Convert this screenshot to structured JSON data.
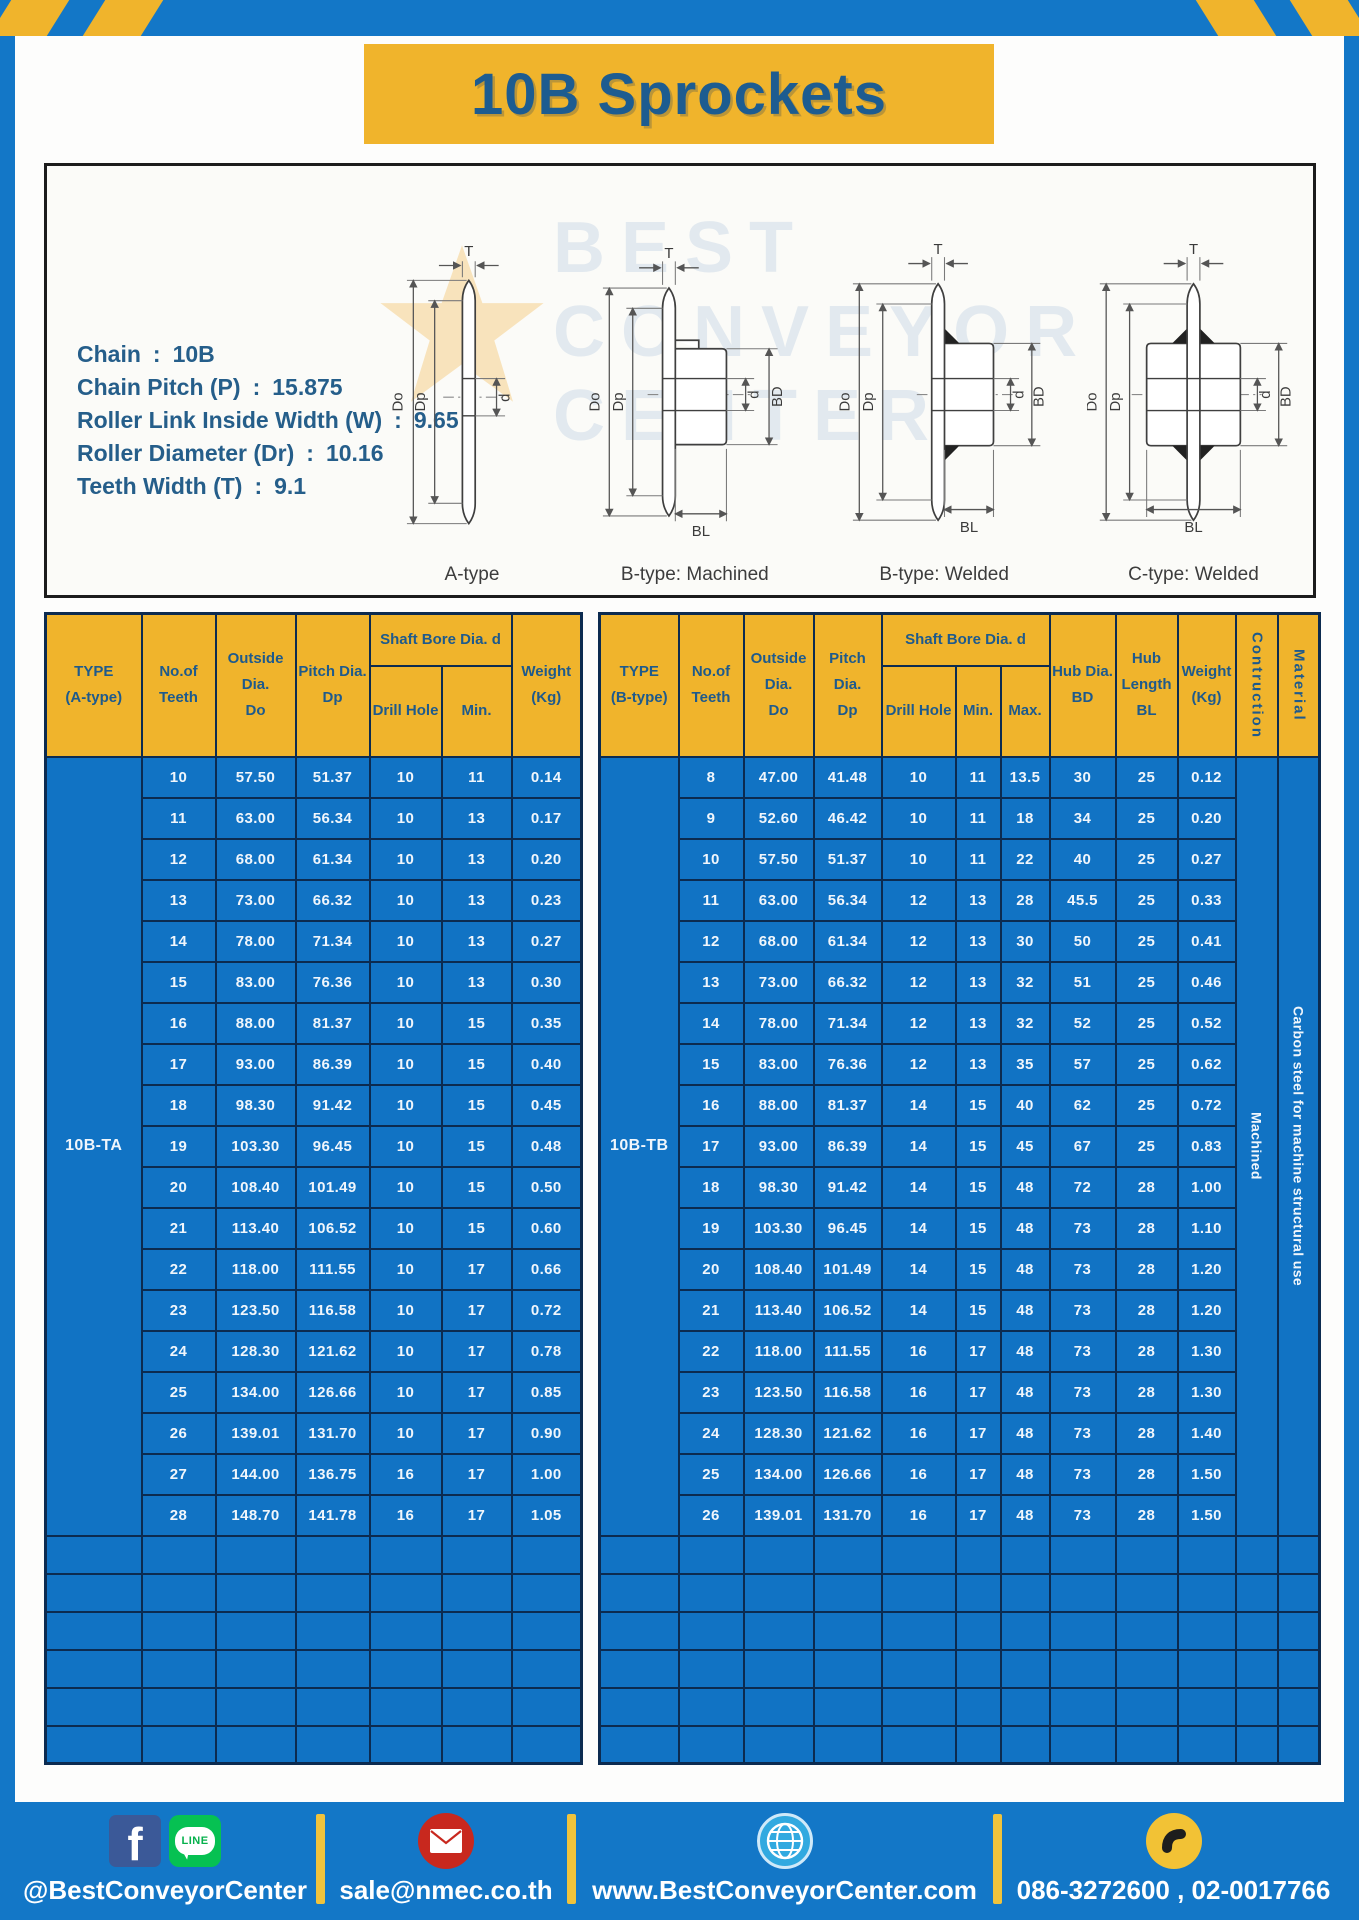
{
  "header": {
    "title": "10B Sprockets"
  },
  "specs": {
    "separator": ":",
    "items": [
      {
        "label": "Chain",
        "value": "10B"
      },
      {
        "label": "Chain Pitch (P)",
        "value": "15.875"
      },
      {
        "label": "Roller Link Inside Width (W)",
        "value": "9.65"
      },
      {
        "label": "Roller Diameter (Dr)",
        "value": "10.16"
      },
      {
        "label": "Teeth Width (T)",
        "value": "9.1"
      }
    ]
  },
  "diagram": {
    "captions": [
      "A-type",
      "B-type: Machined",
      "B-type: Welded",
      "C-type: Welded"
    ],
    "dims": {
      "t": "T",
      "outside": "Do",
      "pitch": "Dp",
      "bore": "d",
      "hub_dia": "BD",
      "hub_len": "BL"
    },
    "watermark": [
      "BEST",
      "CONVEYOR",
      "CENTER"
    ]
  },
  "table_a": {
    "header": {
      "type": "TYPE\n(A-type)",
      "teeth": "No.of\nTeeth",
      "outside": "Outside\nDia.\nDo",
      "pitch": "Pitch Dia.\nDp",
      "shaft_bore": "Shaft Bore Dia. d",
      "drill": "Drill Hole",
      "min": "Min.",
      "weight": "Weight\n(Kg)"
    },
    "type_label": "10B-TA",
    "rows": [
      [
        "10",
        "57.50",
        "51.37",
        "10",
        "11",
        "0.14"
      ],
      [
        "11",
        "63.00",
        "56.34",
        "10",
        "13",
        "0.17"
      ],
      [
        "12",
        "68.00",
        "61.34",
        "10",
        "13",
        "0.20"
      ],
      [
        "13",
        "73.00",
        "66.32",
        "10",
        "13",
        "0.23"
      ],
      [
        "14",
        "78.00",
        "71.34",
        "10",
        "13",
        "0.27"
      ],
      [
        "15",
        "83.00",
        "76.36",
        "10",
        "13",
        "0.30"
      ],
      [
        "16",
        "88.00",
        "81.37",
        "10",
        "15",
        "0.35"
      ],
      [
        "17",
        "93.00",
        "86.39",
        "10",
        "15",
        "0.40"
      ],
      [
        "18",
        "98.30",
        "91.42",
        "10",
        "15",
        "0.45"
      ],
      [
        "19",
        "103.30",
        "96.45",
        "10",
        "15",
        "0.48"
      ],
      [
        "20",
        "108.40",
        "101.49",
        "10",
        "15",
        "0.50"
      ],
      [
        "21",
        "113.40",
        "106.52",
        "10",
        "15",
        "0.60"
      ],
      [
        "22",
        "118.00",
        "111.55",
        "10",
        "17",
        "0.66"
      ],
      [
        "23",
        "123.50",
        "116.58",
        "10",
        "17",
        "0.72"
      ],
      [
        "24",
        "128.30",
        "121.62",
        "10",
        "17",
        "0.78"
      ],
      [
        "25",
        "134.00",
        "126.66",
        "10",
        "17",
        "0.85"
      ],
      [
        "26",
        "139.01",
        "131.70",
        "10",
        "17",
        "0.90"
      ],
      [
        "27",
        "144.00",
        "136.75",
        "16",
        "17",
        "1.00"
      ],
      [
        "28",
        "148.70",
        "141.78",
        "16",
        "17",
        "1.05"
      ]
    ],
    "empty_rows": 6
  },
  "table_b": {
    "header": {
      "type": "TYPE\n(B-type)",
      "teeth": "No.of\nTeeth",
      "outside": "Outside\nDia.\nDo",
      "pitch": "Pitch Dia.\nDp",
      "shaft_bore": "Shaft Bore Dia. d",
      "drill": "Drill Hole",
      "min": "Min.",
      "max": "Max.",
      "hub_dia": "Hub Dia.\nBD",
      "hub_len": "Hub\nLength\nBL",
      "weight": "Weight\n(Kg)",
      "construction": "Contruction",
      "material": "Material"
    },
    "type_label": "10B-TB",
    "construction": "Machined",
    "material": "Carbon steel  for machine structural use",
    "rows": [
      [
        "8",
        "47.00",
        "41.48",
        "10",
        "11",
        "13.5",
        "30",
        "25",
        "0.12"
      ],
      [
        "9",
        "52.60",
        "46.42",
        "10",
        "11",
        "18",
        "34",
        "25",
        "0.20"
      ],
      [
        "10",
        "57.50",
        "51.37",
        "10",
        "11",
        "22",
        "40",
        "25",
        "0.27"
      ],
      [
        "11",
        "63.00",
        "56.34",
        "12",
        "13",
        "28",
        "45.5",
        "25",
        "0.33"
      ],
      [
        "12",
        "68.00",
        "61.34",
        "12",
        "13",
        "30",
        "50",
        "25",
        "0.41"
      ],
      [
        "13",
        "73.00",
        "66.32",
        "12",
        "13",
        "32",
        "51",
        "25",
        "0.46"
      ],
      [
        "14",
        "78.00",
        "71.34",
        "12",
        "13",
        "32",
        "52",
        "25",
        "0.52"
      ],
      [
        "15",
        "83.00",
        "76.36",
        "12",
        "13",
        "35",
        "57",
        "25",
        "0.62"
      ],
      [
        "16",
        "88.00",
        "81.37",
        "14",
        "15",
        "40",
        "62",
        "25",
        "0.72"
      ],
      [
        "17",
        "93.00",
        "86.39",
        "14",
        "15",
        "45",
        "67",
        "25",
        "0.83"
      ],
      [
        "18",
        "98.30",
        "91.42",
        "14",
        "15",
        "48",
        "72",
        "28",
        "1.00"
      ],
      [
        "19",
        "103.30",
        "96.45",
        "14",
        "15",
        "48",
        "73",
        "28",
        "1.10"
      ],
      [
        "20",
        "108.40",
        "101.49",
        "14",
        "15",
        "48",
        "73",
        "28",
        "1.20"
      ],
      [
        "21",
        "113.40",
        "106.52",
        "14",
        "15",
        "48",
        "73",
        "28",
        "1.20"
      ],
      [
        "22",
        "118.00",
        "111.55",
        "16",
        "17",
        "48",
        "73",
        "28",
        "1.30"
      ],
      [
        "23",
        "123.50",
        "116.58",
        "16",
        "17",
        "48",
        "73",
        "28",
        "1.30"
      ],
      [
        "24",
        "128.30",
        "121.62",
        "16",
        "17",
        "48",
        "73",
        "28",
        "1.40"
      ],
      [
        "25",
        "134.00",
        "126.66",
        "16",
        "17",
        "48",
        "73",
        "28",
        "1.50"
      ],
      [
        "26",
        "139.01",
        "131.70",
        "16",
        "17",
        "48",
        "73",
        "28",
        "1.50"
      ]
    ],
    "empty_rows": 6
  },
  "footer": {
    "social": "@BestConveyorCenter",
    "email": "sale@nmec.co.th",
    "website": "www.BestConveyorCenter.com",
    "phone": "086-3272600 , 02-0017766",
    "icons": {
      "facebook_glyph": "f",
      "line_label": "LINE"
    }
  },
  "colors": {
    "frame_blue": "#1377c7",
    "accent_yellow": "#f0b42c",
    "cell_blue": "#1173c4",
    "grid_navy": "#0c2b50",
    "header_text": "#1e5a8c"
  }
}
